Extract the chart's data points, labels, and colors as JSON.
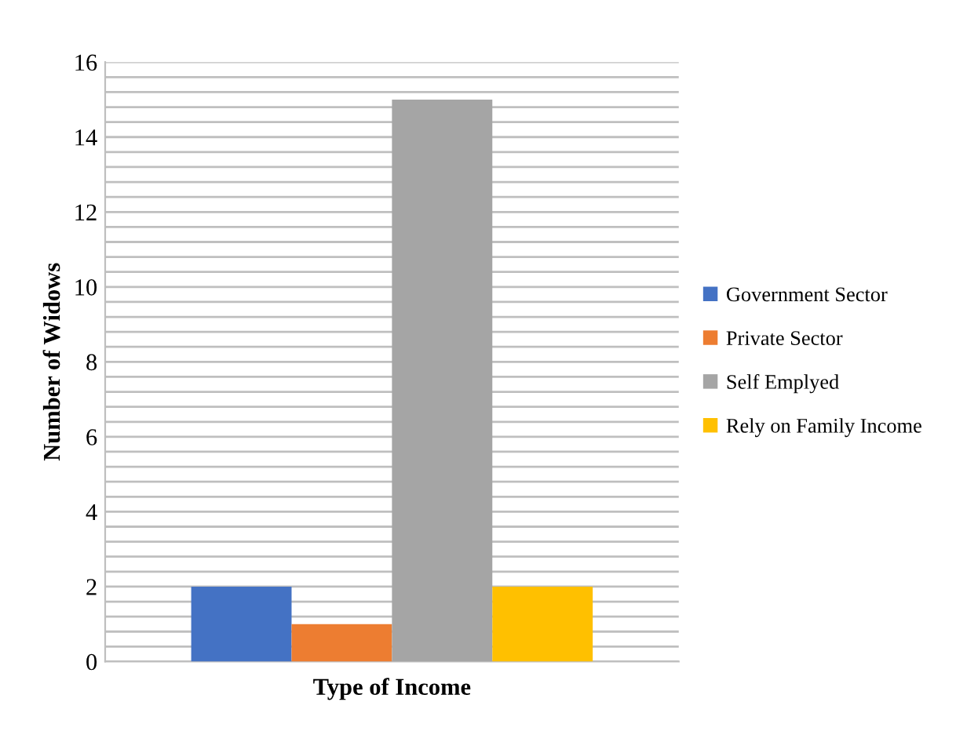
{
  "chart_data": {
    "type": "bar",
    "xlabel": "Type of Income",
    "ylabel": "Number of Widows",
    "categories": [
      null
    ],
    "series": [
      {
        "name": "Government Sector",
        "color": "#4472c4",
        "values": [
          2
        ]
      },
      {
        "name": "Private Sector",
        "color": "#ed7d31",
        "values": [
          1
        ]
      },
      {
        "name": "Self Emplyed",
        "color": "#a5a5a5",
        "values": [
          15
        ]
      },
      {
        "name": "Rely on Family Income",
        "color": "#ffc000",
        "values": [
          2
        ]
      }
    ],
    "ylim": [
      0,
      16
    ],
    "yticks": [
      0,
      {
        "value": 0.4,
        "label": null
      },
      {
        "value": 0.8,
        "label": null
      },
      {
        "value": 1.2,
        "label": null
      },
      {
        "value": 1.6,
        "label": null
      },
      2,
      {
        "value": 2.4,
        "label": null
      },
      {
        "value": 2.8,
        "label": null
      },
      {
        "value": 3.2,
        "label": null
      },
      {
        "value": 3.6,
        "label": null
      },
      4,
      {
        "value": 4.4,
        "label": null
      },
      {
        "value": 4.8,
        "label": null
      },
      {
        "value": 5.2,
        "label": null
      },
      {
        "value": 5.6,
        "label": null
      },
      6,
      {
        "value": 6.4,
        "label": null
      },
      {
        "value": 6.8,
        "label": null
      },
      {
        "value": 7.2,
        "label": null
      },
      {
        "value": 7.6,
        "label": null
      },
      8,
      {
        "value": 8.4,
        "label": null
      },
      {
        "value": 8.8,
        "label": null
      },
      {
        "value": 9.2,
        "label": null
      },
      {
        "value": 9.6,
        "label": null
      },
      10,
      {
        "value": 10.4,
        "label": null
      },
      {
        "value": 10.8,
        "label": null
      },
      {
        "value": 11.2,
        "label": null
      },
      {
        "value": 11.6,
        "label": null
      },
      12,
      {
        "value": 12.4,
        "label": null
      },
      {
        "value": 12.8,
        "label": null
      },
      {
        "value": 13.2,
        "label": null
      },
      {
        "value": 13.6,
        "label": null
      },
      14,
      {
        "value": 14.4,
        "label": null
      },
      {
        "value": 14.8,
        "label": null
      },
      {
        "value": 15.2,
        "label": null
      },
      {
        "value": 15.6,
        "label": null
      },
      16
    ],
    "grid": "y",
    "legend": "right"
  }
}
